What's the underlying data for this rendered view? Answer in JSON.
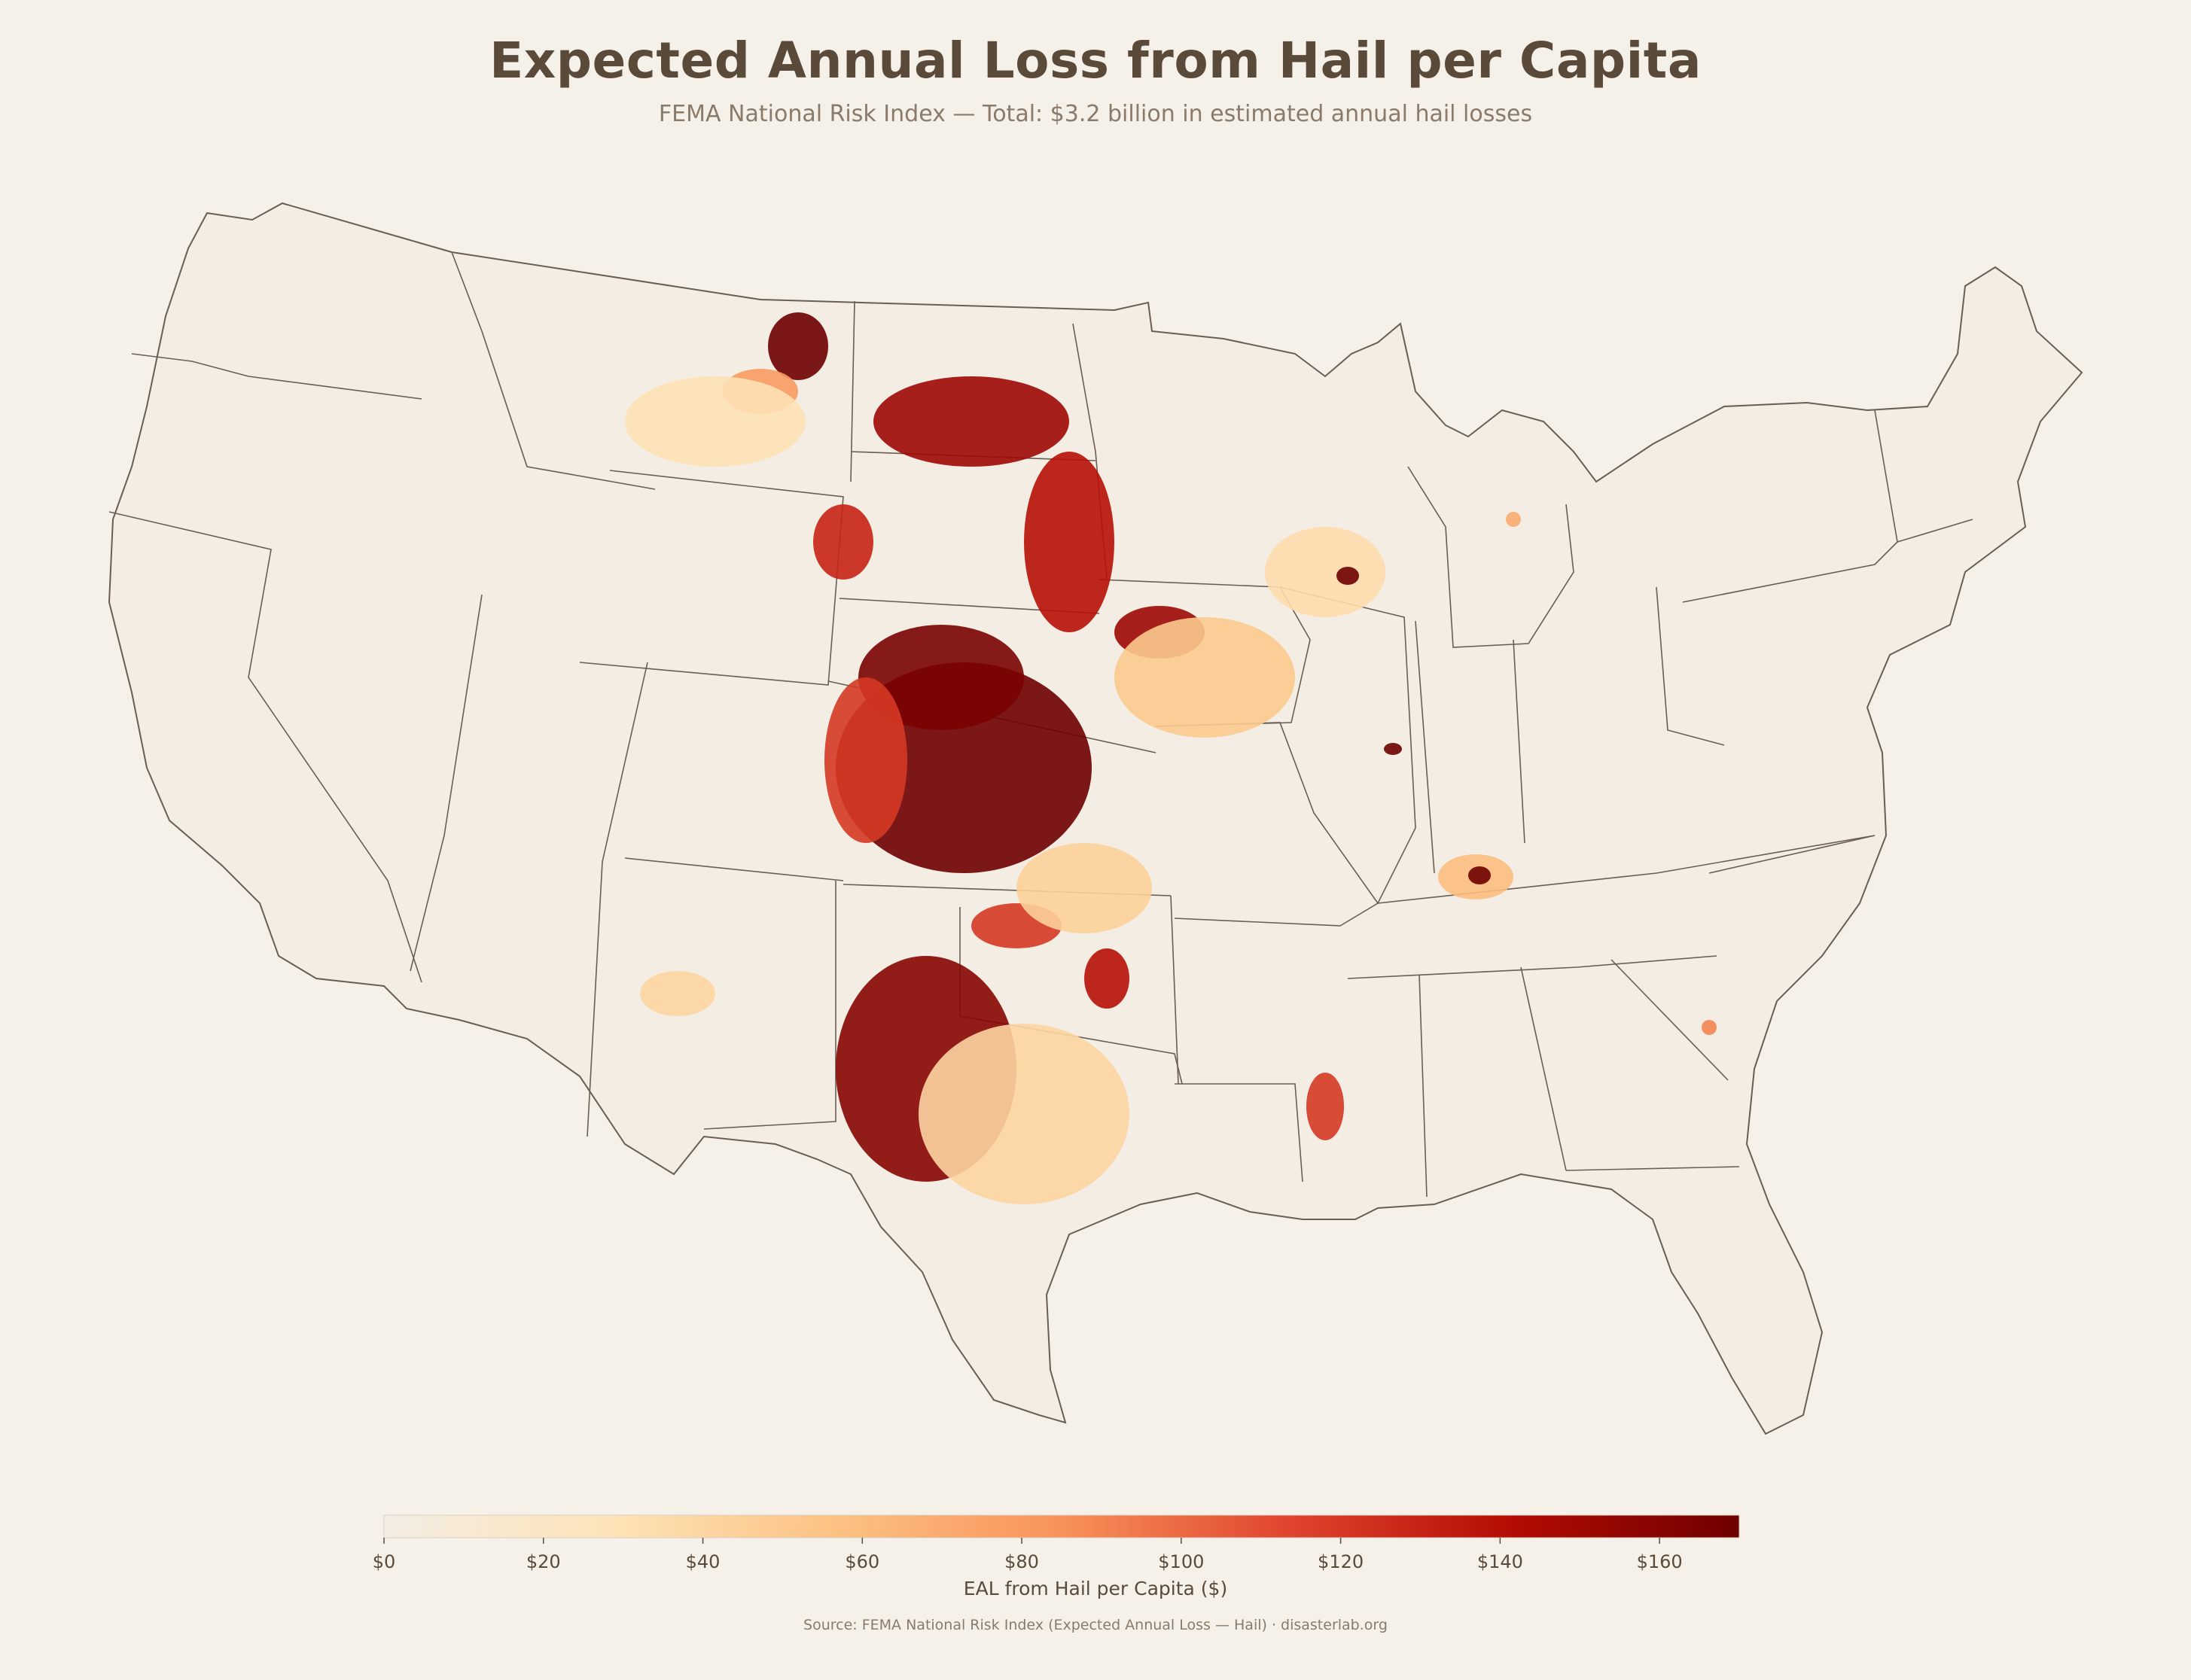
{
  "title": "Expected Annual Loss from Hail per Capita",
  "subtitle": "FEMA National Risk Index — Total: $3.2 billion in estimated annual hail losses",
  "legend": {
    "title": "EAL from Hail per Capita ($)",
    "min": 0,
    "max": 170,
    "ticks": [
      {
        "value": 0,
        "label": "$0"
      },
      {
        "value": 20,
        "label": "$20"
      },
      {
        "value": 40,
        "label": "$40"
      },
      {
        "value": 60,
        "label": "$60"
      },
      {
        "value": 80,
        "label": "$80"
      },
      {
        "value": 100,
        "label": "$100"
      },
      {
        "value": 120,
        "label": "$120"
      },
      {
        "value": 140,
        "label": "$140"
      },
      {
        "value": 160,
        "label": "$160"
      }
    ],
    "color_stops": [
      "#f3ede4",
      "#fde3b8",
      "#fcc283",
      "#f8925a",
      "#e0452e",
      "#b30c04",
      "#6e0000"
    ]
  },
  "colors": {
    "background": "#f6f1e8",
    "border": "#6a5e52",
    "land": "#f3ede4"
  },
  "source": "Source: FEMA National Risk Index (Expected Annual Loss — Hail)  ·  disasterlab.org"
}
